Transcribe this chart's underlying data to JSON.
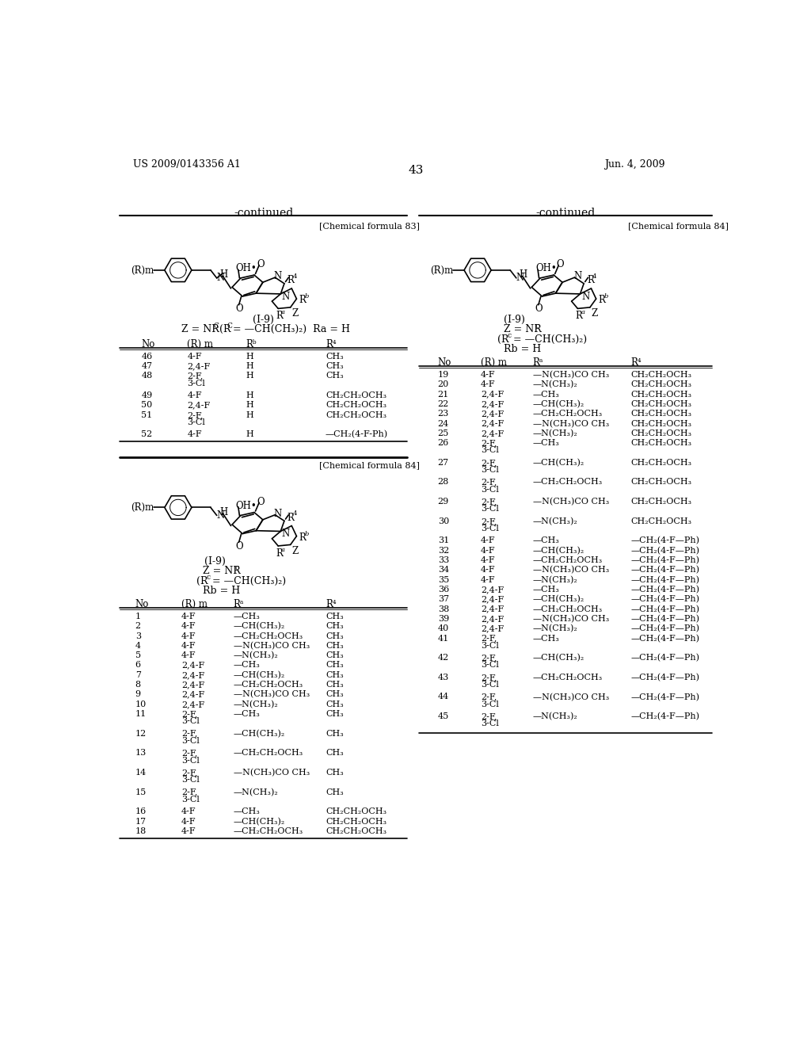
{
  "page_number": "43",
  "left_header": "US 2009/0143356 A1",
  "right_header": "Jun. 4, 2009",
  "background_color": "#ffffff",
  "text_color": "#000000",
  "table1": {
    "headers": [
      "No",
      "(R) m",
      "Rᵇ",
      "R⁴"
    ],
    "data": [
      [
        "46",
        "4-F",
        "H",
        "CH₃"
      ],
      [
        "47",
        "2,4-F",
        "H",
        "CH₃"
      ],
      [
        "48",
        "2-F,\n3-Cl",
        "H",
        "CH₃"
      ],
      [
        "49",
        "4-F",
        "H",
        "CH₂CH₂OCH₃"
      ],
      [
        "50",
        "2,4-F",
        "H",
        "CH₂CH₂OCH₃"
      ],
      [
        "51",
        "2-F,\n3-Cl",
        "H",
        "CH₂CH₂OCH₃"
      ],
      [
        "52",
        "4-F",
        "H",
        "—CH₂(4-F-Ph)"
      ]
    ]
  },
  "table2": {
    "headers": [
      "No",
      "(R) m",
      "Rᵃ",
      "R⁴"
    ],
    "data": [
      [
        "1",
        "4-F",
        "—CH₃",
        "CH₃"
      ],
      [
        "2",
        "4-F",
        "—CH(CH₃)₂",
        "CH₃"
      ],
      [
        "3",
        "4-F",
        "—CH₂CH₂OCH₃",
        "CH₃"
      ],
      [
        "4",
        "4-F",
        "—N(CH₃)CO CH₃",
        "CH₃"
      ],
      [
        "5",
        "4-F",
        "—N(CH₃)₂",
        "CH₃"
      ],
      [
        "6",
        "2,4-F",
        "—CH₃",
        "CH₃"
      ],
      [
        "7",
        "2,4-F",
        "—CH(CH₃)₂",
        "CH₃"
      ],
      [
        "8",
        "2,4-F",
        "—CH₂CH₂OCH₃",
        "CH₃"
      ],
      [
        "9",
        "2,4-F",
        "—N(CH₃)CO CH₃",
        "CH₃"
      ],
      [
        "10",
        "2,4-F",
        "—N(CH₃)₂",
        "CH₃"
      ],
      [
        "11",
        "2-F,\n3-Cl",
        "—CH₃",
        "CH₃"
      ],
      [
        "12",
        "2-F,\n3-Cl",
        "—CH(CH₃)₂",
        "CH₃"
      ],
      [
        "13",
        "2-F,\n3-Cl",
        "—CH₂CH₂OCH₃",
        "CH₃"
      ],
      [
        "14",
        "2-F,\n3-Cl",
        "—N(CH₃)CO CH₃",
        "CH₃"
      ],
      [
        "15",
        "2-F,\n3-Cl",
        "—N(CH₃)₂",
        "CH₃"
      ],
      [
        "16",
        "4-F",
        "—CH₃",
        "CH₂CH₂OCH₃"
      ],
      [
        "17",
        "4-F",
        "—CH(CH₃)₂",
        "CH₂CH₂OCH₃"
      ],
      [
        "18",
        "4-F",
        "—CH₂CH₂OCH₃",
        "CH₂CH₂OCH₃"
      ]
    ]
  },
  "table3": {
    "headers": [
      "No",
      "(R) m",
      "Rᵃ",
      "R⁴"
    ],
    "data": [
      [
        "19",
        "4-F",
        "—N(CH₃)CO CH₃",
        "CH₂CH₂OCH₃"
      ],
      [
        "20",
        "4-F",
        "—N(CH₃)₂",
        "CH₂CH₂OCH₃"
      ],
      [
        "21",
        "2,4-F",
        "—CH₃",
        "CH₂CH₂OCH₃"
      ],
      [
        "22",
        "2,4-F",
        "—CH(CH₃)₂",
        "CH₂CH₂OCH₃"
      ],
      [
        "23",
        "2,4-F",
        "—CH₂CH₂OCH₃",
        "CH₂CH₂OCH₃"
      ],
      [
        "24",
        "2,4-F",
        "—N(CH₃)CO CH₃",
        "CH₂CH₂OCH₃"
      ],
      [
        "25",
        "2,4-F",
        "—N(CH₃)₂",
        "CH₂CH₂OCH₃"
      ],
      [
        "26",
        "2-F,\n3-Cl",
        "—CH₃",
        "CH₂CH₂OCH₃"
      ],
      [
        "27",
        "2-F,\n3-Cl",
        "—CH(CH₃)₂",
        "CH₂CH₂OCH₃"
      ],
      [
        "28",
        "2-F,\n3-Cl",
        "—CH₂CH₂OCH₃",
        "CH₂CH₂OCH₃"
      ],
      [
        "29",
        "2-F,\n3-Cl",
        "—N(CH₃)CO CH₃",
        "CH₂CH₂OCH₃"
      ],
      [
        "30",
        "2-F,\n3-Cl",
        "—N(CH₃)₂",
        "CH₂CH₂OCH₃"
      ],
      [
        "31",
        "4-F",
        "—CH₃",
        "—CH₂(4-F—Ph)"
      ],
      [
        "32",
        "4-F",
        "—CH(CH₃)₂",
        "—CH₂(4-F—Ph)"
      ],
      [
        "33",
        "4-F",
        "—CH₂CH₂OCH₃",
        "—CH₂(4-F—Ph)"
      ],
      [
        "34",
        "4-F",
        "—N(CH₃)CO CH₃",
        "—CH₂(4-F—Ph)"
      ],
      [
        "35",
        "4-F",
        "—N(CH₃)₂",
        "—CH₂(4-F—Ph)"
      ],
      [
        "36",
        "2,4-F",
        "—CH₃",
        "—CH₂(4-F—Ph)"
      ],
      [
        "37",
        "2,4-F",
        "—CH(CH₃)₂",
        "—CH₂(4-F—Ph)"
      ],
      [
        "38",
        "2,4-F",
        "—CH₂CH₂OCH₃",
        "—CH₂(4-F—Ph)"
      ],
      [
        "39",
        "2,4-F",
        "—N(CH₃)CO CH₃",
        "—CH₂(4-F—Ph)"
      ],
      [
        "40",
        "2,4-F",
        "—N(CH₃)₂",
        "—CH₂(4-F—Ph)"
      ],
      [
        "41",
        "2-F,\n3-Cl",
        "—CH₃",
        "—CH₂(4-F—Ph)"
      ],
      [
        "42",
        "2-F,\n3-Cl",
        "—CH(CH₃)₂",
        "—CH₂(4-F—Ph)"
      ],
      [
        "43",
        "2-F,\n3-Cl",
        "—CH₂CH₂OCH₃",
        "—CH₂(4-F—Ph)"
      ],
      [
        "44",
        "2-F,\n3-Cl",
        "—N(CH₃)CO CH₃",
        "—CH₂(4-F—Ph)"
      ],
      [
        "45",
        "2-F,\n3-Cl",
        "—N(CH₃)₂",
        "—CH₂(4-F—Ph)"
      ]
    ]
  }
}
